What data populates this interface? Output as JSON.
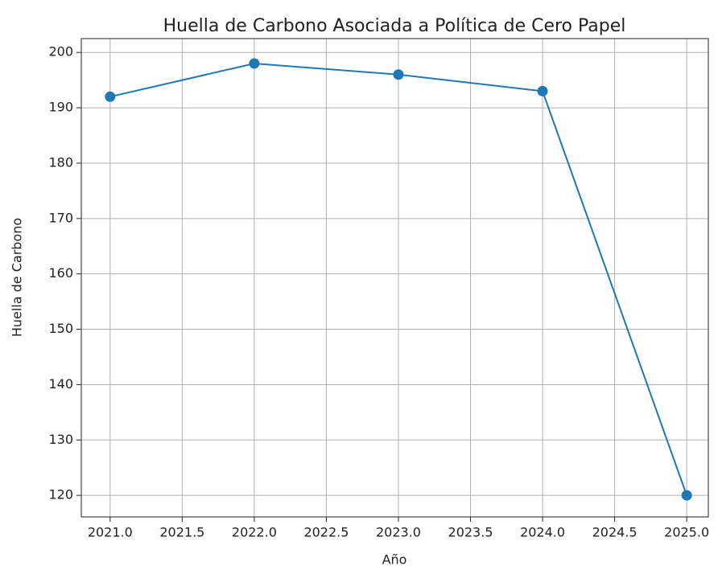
{
  "chart_data": {
    "type": "line",
    "title": "Huella de Carbono Asociada a Política de Cero Papel",
    "x_label": "Año",
    "y_label": "Huella de Carbono",
    "x": [
      2021,
      2022,
      2023,
      2024,
      2025
    ],
    "series": [
      {
        "name": "Huella de Carbono",
        "color": "#1f77b4",
        "values": [
          192,
          198,
          196,
          193,
          120
        ]
      }
    ],
    "xlim": [
      2020.8,
      2025.15
    ],
    "xticks": [
      {
        "value": 2021,
        "label": "2021.0"
      },
      2021.5,
      {
        "value": 2022,
        "label": "2022.0"
      },
      2022.5,
      {
        "value": 2023,
        "label": "2023.0"
      },
      2023.5,
      {
        "value": 2024,
        "label": "2024.0"
      },
      2024.5,
      {
        "value": 2025,
        "label": "2025.0"
      }
    ],
    "ylim": [
      116.1,
      202.5
    ],
    "yticks": [
      120,
      130,
      140,
      150,
      160,
      170,
      180,
      190,
      200
    ],
    "grid": true,
    "markers": true
  }
}
